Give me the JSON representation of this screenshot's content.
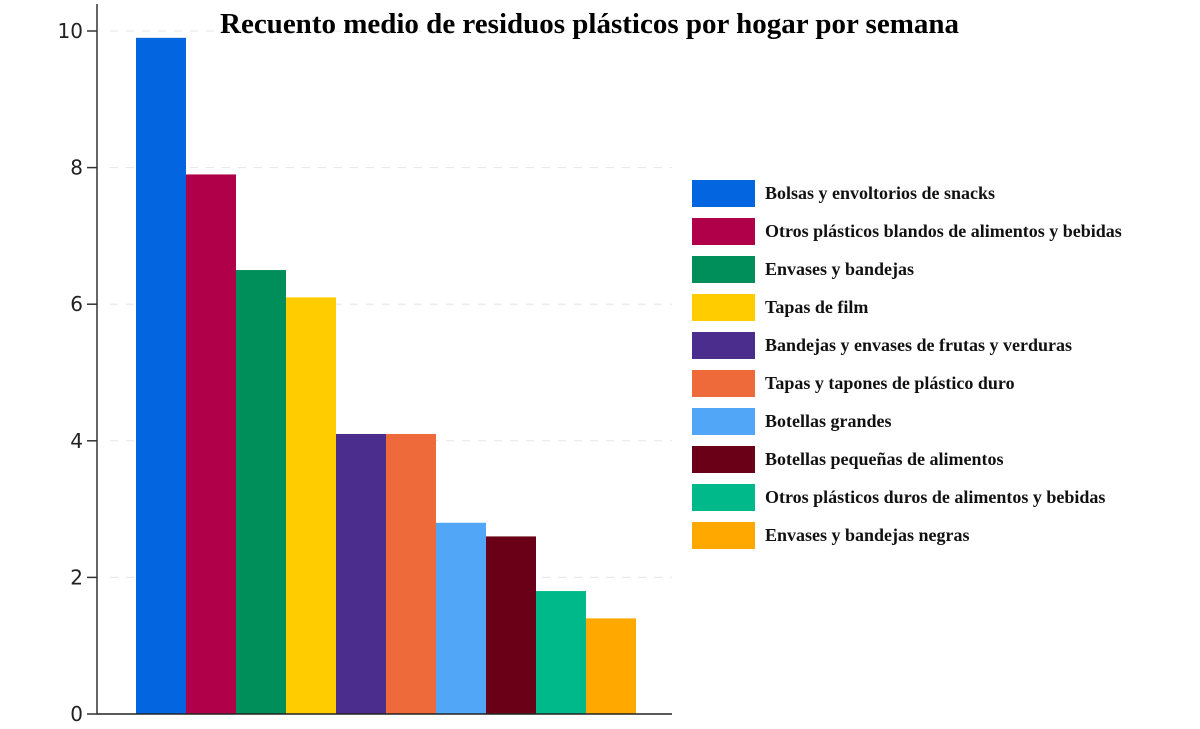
{
  "chart_data": {
    "type": "bar",
    "title": "Recuento medio de residuos plásticos por hogar por semana",
    "xlabel": "",
    "ylabel": "",
    "ylim": [
      0,
      10
    ],
    "yticks": [
      0,
      2,
      4,
      6,
      8,
      10
    ],
    "grid": true,
    "legend_position": "right",
    "categories": [
      "Bolsas y envoltorios de snacks",
      "Otros plásticos blandos de alimentos y bebidas",
      "Envases y bandejas",
      "Tapas de film",
      "Bandejas y envases de frutas y verduras",
      "Tapas y tapones de plástico duro",
      "Botellas grandes",
      "Botellas pequeñas de alimentos",
      "Otros plásticos duros de alimentos y bebidas",
      "Envases y bandejas negras"
    ],
    "values": [
      9.9,
      7.9,
      6.5,
      6.1,
      4.1,
      4.1,
      2.8,
      2.6,
      1.8,
      1.4
    ],
    "colors": [
      "#0366e0",
      "#b0004a",
      "#008f5a",
      "#ffcc00",
      "#4a2d8c",
      "#ee6a3a",
      "#52a6f8",
      "#690018",
      "#00b98a",
      "#ffa800"
    ]
  }
}
